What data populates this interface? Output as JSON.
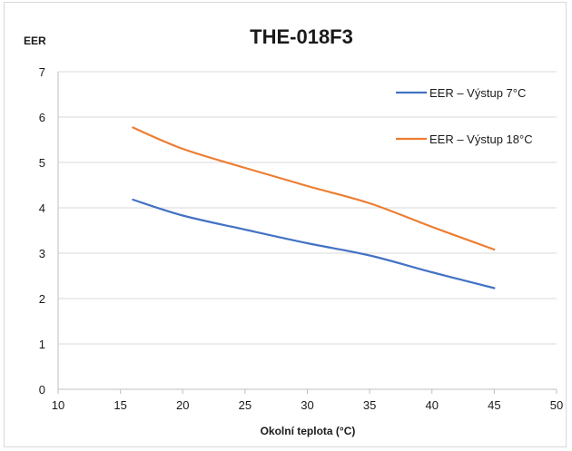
{
  "chart_data": {
    "type": "line",
    "title": "THE-018F3",
    "xlabel": "Okolní teplota (°C)",
    "ylabel": "EER",
    "xlim": [
      10,
      50
    ],
    "ylim": [
      0,
      7
    ],
    "xticks": [
      "10",
      "15",
      "20",
      "25",
      "30",
      "35",
      "40",
      "45",
      "50"
    ],
    "yticks": [
      "0",
      "1",
      "2",
      "3",
      "4",
      "5",
      "6",
      "7"
    ],
    "grid": true,
    "legend_position": "top-right",
    "series": [
      {
        "name": "EER – Výstup 7°C",
        "color": "#4472c4",
        "x": [
          16,
          20,
          25,
          30,
          35,
          40,
          45
        ],
        "y": [
          4.18,
          3.83,
          3.52,
          3.22,
          2.95,
          2.58,
          2.23
        ]
      },
      {
        "name": "EER – Výstup 18°C",
        "color": "#ed7d31",
        "x": [
          16,
          20,
          25,
          30,
          35,
          40,
          45
        ],
        "y": [
          5.77,
          5.3,
          4.88,
          4.48,
          4.1,
          3.58,
          3.08
        ]
      }
    ]
  }
}
